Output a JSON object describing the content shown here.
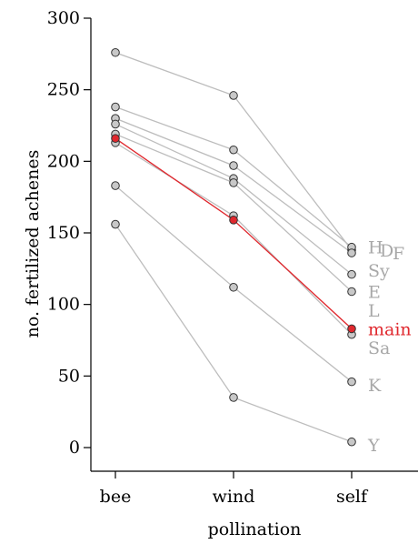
{
  "chart_data": {
    "type": "line",
    "title": "",
    "xlabel": "pollination",
    "ylabel": "no. fertilized achenes",
    "categories": [
      "bee",
      "wind",
      "self"
    ],
    "ylim": [
      -15,
      305
    ],
    "yticks": [
      0,
      50,
      100,
      150,
      200,
      250,
      300
    ],
    "grid": false,
    "legend": "none",
    "colors": {
      "gray_line": "#bdbdbd",
      "gray_point": "#c8c8c8",
      "gray_label": "#a8a8a8",
      "highlight": "#e0282e"
    },
    "series": [
      {
        "values": [
          276,
          246,
          138
        ]
      },
      {
        "values": [
          238,
          208,
          140
        ]
      },
      {
        "values": [
          230,
          197,
          136
        ]
      },
      {
        "values": [
          226,
          188,
          121
        ]
      },
      {
        "values": [
          219,
          185,
          109
        ]
      },
      {
        "values": [
          213,
          162,
          79
        ]
      },
      {
        "values": [
          183,
          112,
          46
        ]
      },
      {
        "values": [
          156,
          35,
          4
        ]
      },
      {
        "name": "main",
        "values": [
          216,
          159,
          83
        ],
        "highlight": true
      }
    ],
    "labels": [
      {
        "text": "H",
        "value": 140,
        "dx": 0
      },
      {
        "text": "D",
        "value": 138,
        "dx": 13
      },
      {
        "text": "F",
        "value": 136,
        "dx": 27
      },
      {
        "text": "Sy",
        "value": 124,
        "dx": 0
      },
      {
        "text": "E",
        "value": 109,
        "dx": 0
      },
      {
        "text": "L",
        "value": 96,
        "dx": 0
      },
      {
        "text": "main",
        "value": 83,
        "dx": 0,
        "highlight": true
      },
      {
        "text": "Sa",
        "value": 70,
        "dx": 0
      },
      {
        "text": "K",
        "value": 44,
        "dx": 0
      },
      {
        "text": "Y",
        "value": 2,
        "dx": 0
      }
    ]
  }
}
